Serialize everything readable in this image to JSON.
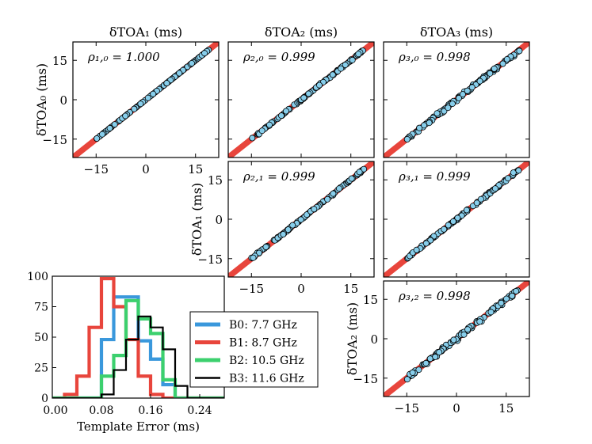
{
  "chart_data": {
    "type": "scatter-matrix-with-histogram",
    "title_colors": {
      "line": "#e8453c",
      "point": "#87ceeb"
    },
    "column_titles": [
      "δTOA₁ (ms)",
      "δTOA₂ (ms)",
      "δTOA₃ (ms)"
    ],
    "row_titles": [
      "δTOA₀ (ms)",
      "δTOA₁ (ms)",
      "δTOA₂ (ms)"
    ],
    "axis_range": [
      -22,
      22
    ],
    "ticks": [
      -15,
      0,
      15
    ],
    "tick_labels": [
      "−15",
      "0",
      "15"
    ],
    "panels": [
      {
        "id": "p10",
        "row": 0,
        "col": 0,
        "rho_label": "ρ₁,₀ = 1.000",
        "rho": 1.0
      },
      {
        "id": "p20",
        "row": 0,
        "col": 1,
        "rho_label": "ρ₂,₀ = 0.999",
        "rho": 0.999
      },
      {
        "id": "p30",
        "row": 0,
        "col": 2,
        "rho_label": "ρ₃,₀ = 0.998",
        "rho": 0.998
      },
      {
        "id": "p21",
        "row": 1,
        "col": 1,
        "rho_label": "ρ₂,₁ = 0.999",
        "rho": 0.999
      },
      {
        "id": "p31",
        "row": 1,
        "col": 2,
        "rho_label": "ρ₃,₁ = 0.999",
        "rho": 0.999
      },
      {
        "id": "p32",
        "row": 2,
        "col": 2,
        "rho_label": "ρ₃,₂ = 0.998",
        "rho": 0.998
      }
    ],
    "histogram": {
      "xlabel": "Template Error (ms)",
      "xlim": [
        0.0,
        0.28
      ],
      "ylim": [
        0,
        100
      ],
      "xticks": [
        0.0,
        0.08,
        0.16,
        0.24
      ],
      "xtick_labels": [
        "0.00",
        "0.08",
        "0.16",
        "0.24"
      ],
      "yticks": [
        0,
        25,
        50,
        75,
        100
      ],
      "ytick_labels": [
        "0",
        "25",
        "50",
        "75",
        "100"
      ],
      "bin_edges": [
        0.0,
        0.02,
        0.04,
        0.06,
        0.08,
        0.1,
        0.12,
        0.14,
        0.16,
        0.18,
        0.2,
        0.22,
        0.24,
        0.26,
        0.28
      ],
      "series": [
        {
          "name": "B0:  7.7 GHz",
          "color": "#3a98dc",
          "values": [
            0,
            0,
            0,
            0,
            48,
            83,
            83,
            47,
            32,
            11,
            0,
            0,
            0,
            0
          ]
        },
        {
          "name": "B1:  8.7 GHz",
          "color": "#e8453c",
          "values": [
            0,
            3,
            18,
            58,
            98,
            75,
            48,
            18,
            3,
            0,
            0,
            0,
            0,
            0
          ]
        },
        {
          "name": "B2: 10.5 GHz",
          "color": "#3cd06e",
          "values": [
            0,
            0,
            0,
            0,
            18,
            35,
            80,
            65,
            53,
            15,
            0,
            0,
            0,
            0
          ]
        },
        {
          "name": "B3: 11.6 GHz",
          "color": "#000000",
          "values": [
            0,
            0,
            0,
            0,
            3,
            23,
            48,
            67,
            58,
            40,
            10,
            0,
            0,
            0
          ]
        }
      ]
    }
  }
}
